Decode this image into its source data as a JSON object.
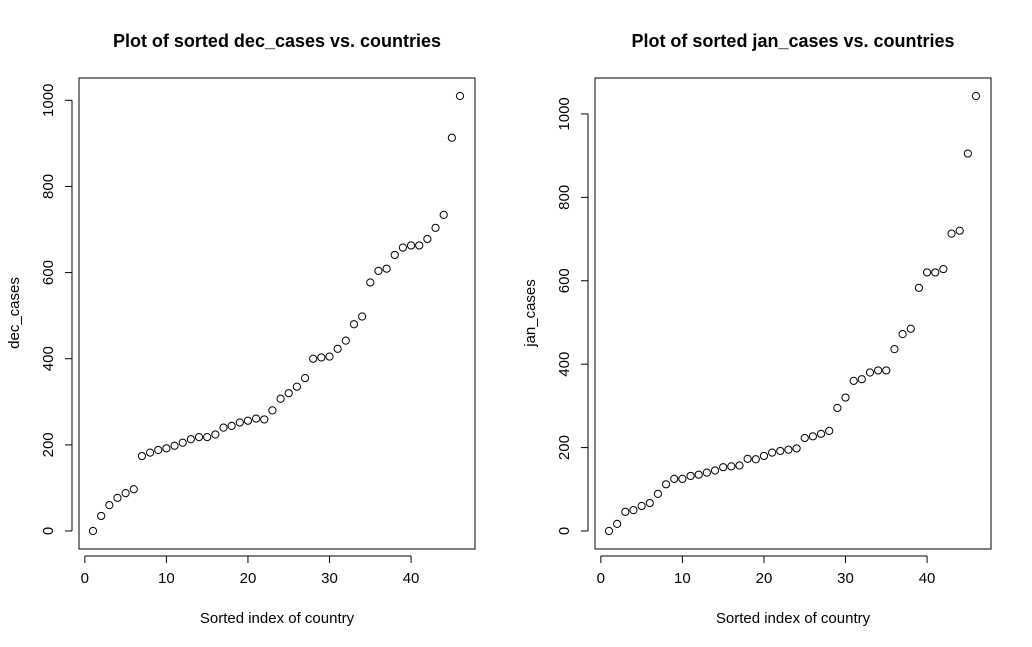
{
  "chart_data": [
    {
      "type": "scatter",
      "title": "Plot of sorted dec_cases vs. countries",
      "xlabel": "Sorted index of country",
      "ylabel": "dec_cases",
      "xlim": [
        1,
        46
      ],
      "ylim": [
        0,
        1010
      ],
      "x_ticks": [
        0,
        10,
        20,
        30,
        40
      ],
      "y_ticks": [
        0,
        200,
        400,
        600,
        800,
        1000
      ],
      "grid": false,
      "x": [
        1,
        2,
        3,
        4,
        5,
        6,
        7,
        8,
        9,
        10,
        11,
        12,
        13,
        14,
        15,
        16,
        17,
        18,
        19,
        20,
        21,
        22,
        23,
        24,
        25,
        26,
        27,
        28,
        29,
        30,
        31,
        32,
        33,
        34,
        35,
        36,
        37,
        38,
        39,
        40,
        41,
        42,
        43,
        44,
        45,
        46
      ],
      "y": [
        0,
        35,
        60,
        77,
        88,
        97,
        174,
        182,
        188,
        192,
        198,
        205,
        213,
        218,
        218,
        224,
        240,
        244,
        252,
        256,
        261,
        259,
        280,
        307,
        320,
        335,
        355,
        400,
        403,
        405,
        423,
        442,
        480,
        498,
        577,
        604,
        609,
        641,
        658,
        663,
        663,
        678,
        704,
        734,
        913,
        1010
      ]
    },
    {
      "type": "scatter",
      "title": "Plot of sorted jan_cases vs. countries",
      "xlabel": "Sorted index of country",
      "ylabel": "jan_cases",
      "xlim": [
        1,
        46
      ],
      "ylim": [
        0,
        1043
      ],
      "x_ticks": [
        0,
        10,
        20,
        30,
        40
      ],
      "y_ticks": [
        0,
        200,
        400,
        600,
        800,
        1000
      ],
      "grid": false,
      "x": [
        1,
        2,
        3,
        4,
        5,
        6,
        7,
        8,
        9,
        10,
        11,
        12,
        13,
        14,
        15,
        16,
        17,
        18,
        19,
        20,
        21,
        22,
        23,
        24,
        25,
        26,
        27,
        28,
        29,
        30,
        31,
        32,
        33,
        34,
        35,
        36,
        37,
        38,
        39,
        40,
        41,
        42,
        43,
        44,
        45,
        46
      ],
      "y": [
        0,
        17,
        46,
        50,
        60,
        67,
        89,
        112,
        125,
        125,
        132,
        135,
        140,
        145,
        153,
        155,
        157,
        173,
        172,
        180,
        188,
        192,
        195,
        198,
        223,
        227,
        233,
        240,
        295,
        320,
        360,
        364,
        380,
        385,
        385,
        436,
        472,
        485,
        583,
        620,
        620,
        628,
        713,
        720,
        905,
        1043
      ]
    }
  ]
}
